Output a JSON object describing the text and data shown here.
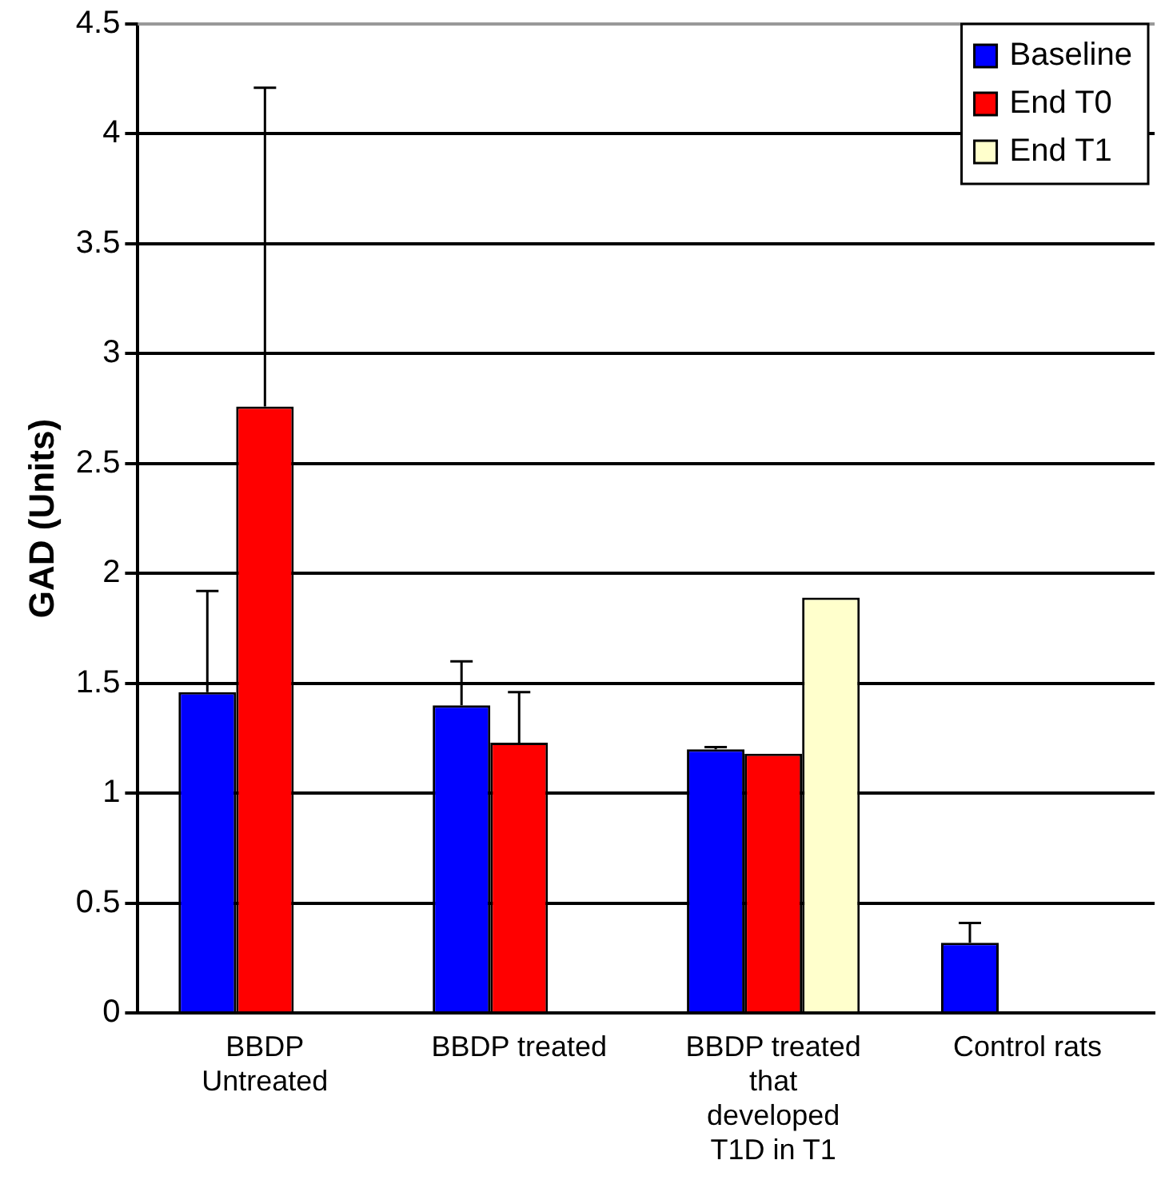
{
  "chart_data": {
    "type": "bar",
    "ylabel": "GAD (Units)",
    "categories": [
      "BBDP Untreated",
      "BBDP treated",
      "BBDP treated that developed T1D in T1",
      "Control rats"
    ],
    "series": [
      {
        "name": "Baseline",
        "color": "#0000ff",
        "values": [
          1.46,
          1.4,
          1.2,
          0.32
        ],
        "errors": [
          [
            1.46,
            1.92
          ],
          [
            1.4,
            1.6
          ],
          [
            1.2,
            1.21
          ],
          [
            0.32,
            0.41
          ]
        ]
      },
      {
        "name": "End T0",
        "color": "#ff0000",
        "values": [
          2.76,
          1.23,
          1.18,
          null
        ],
        "errors": [
          [
            2.76,
            4.21
          ],
          [
            1.23,
            1.46
          ],
          null,
          null
        ]
      },
      {
        "name": "End T1",
        "color": "#ffffcc",
        "values": [
          null,
          null,
          1.89,
          null
        ]
      }
    ],
    "ylim": [
      0,
      4.5
    ],
    "yticks": [
      0,
      0.5,
      1,
      1.5,
      2,
      2.5,
      3,
      3.5,
      4,
      4.5
    ],
    "grid": "y",
    "legend": "top right"
  }
}
